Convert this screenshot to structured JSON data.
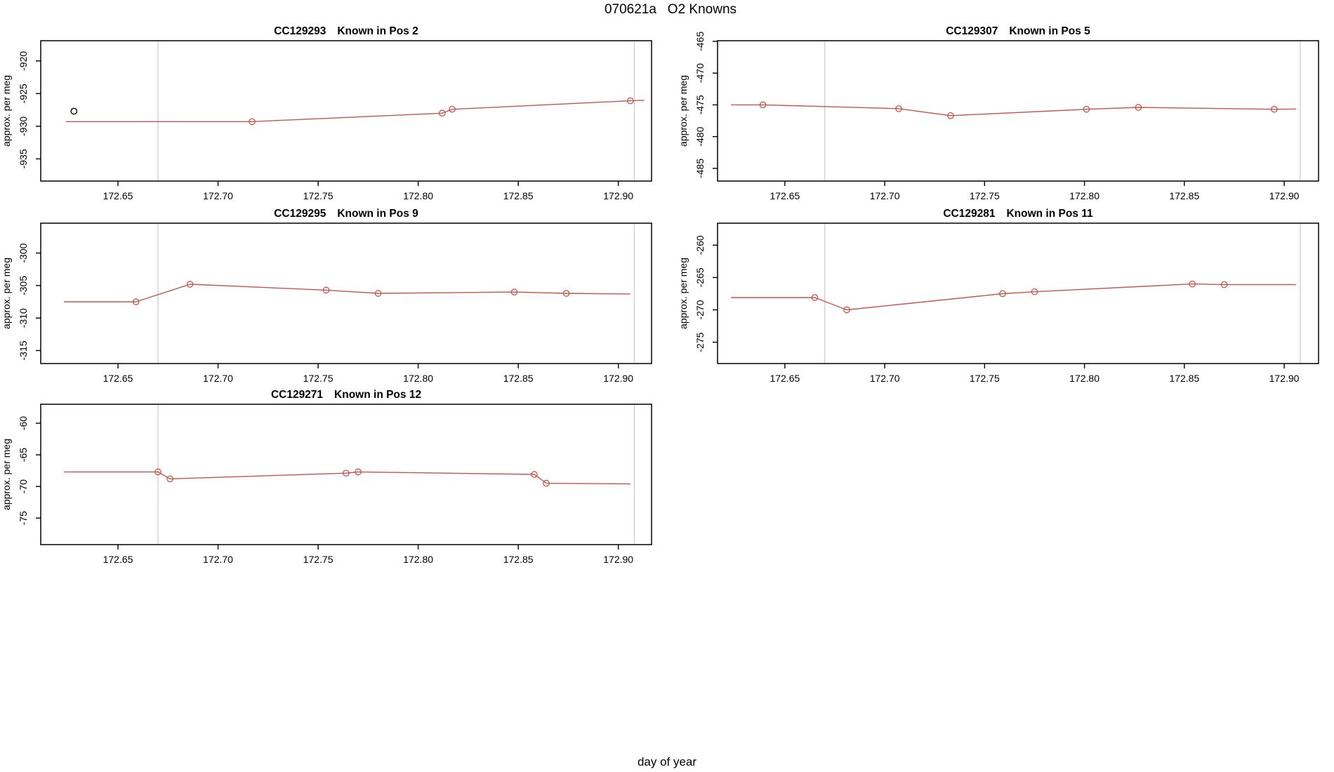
{
  "page_title": "070621a   O2 Knowns",
  "xlabel": "day of year",
  "colors": {
    "series": "#c3564f",
    "marker": "#c3564f",
    "extra_marker": "#000000",
    "event_line": "#cdcdcd",
    "axis_box": "#000000"
  },
  "chart_data": [
    {
      "type": "line",
      "sample_id": "CC129293",
      "position_label": "Known in Pos 2",
      "title": "CC129293   Known in Pos 2",
      "ylabel": "approx. per meg",
      "grid": {
        "row": 0,
        "col": 0
      },
      "xlim": [
        172.6114,
        172.9166
      ],
      "ylim": [
        -938.4,
        -916.9
      ],
      "xticks": [
        172.65,
        172.7,
        172.75,
        172.8,
        172.85,
        172.9
      ],
      "xtick_labels": [
        "172.65",
        "172.70",
        "172.75",
        "172.80",
        "172.85",
        "172.90"
      ],
      "yticks": [
        -920,
        -925,
        -930,
        -935
      ],
      "ytick_labels": [
        "-920",
        "-925",
        "-930",
        "-935"
      ],
      "vlines": [
        172.67,
        172.908
      ],
      "line": [
        [
          172.624,
          -929.3
        ],
        [
          172.717,
          -929.3
        ],
        [
          172.812,
          -928.0
        ],
        [
          172.817,
          -927.4
        ],
        [
          172.906,
          -926.1
        ],
        [
          172.913,
          -926.05
        ]
      ],
      "markers": [
        [
          172.717,
          -929.3
        ],
        [
          172.812,
          -928.0
        ],
        [
          172.817,
          -927.4
        ],
        [
          172.906,
          -926.1
        ]
      ],
      "extra_markers": [
        [
          172.628,
          -927.7
        ]
      ]
    },
    {
      "type": "line",
      "sample_id": "CC129307",
      "position_label": "Known in Pos 5",
      "title": "CC129307   Known in Pos 5",
      "ylabel": "approx. per meg",
      "grid": {
        "row": 0,
        "col": 1
      },
      "xlim": [
        172.6163,
        172.9172
      ],
      "ylim": [
        -487.0,
        -464.9
      ],
      "xticks": [
        172.65,
        172.7,
        172.75,
        172.8,
        172.85,
        172.9
      ],
      "xtick_labels": [
        "172.65",
        "172.70",
        "172.75",
        "172.80",
        "172.85",
        "172.90"
      ],
      "yticks": [
        -465,
        -470,
        -475,
        -480,
        -485
      ],
      "ytick_labels": [
        "-465",
        "-470",
        "-475",
        "-480",
        "-485"
      ],
      "vlines": [
        172.67,
        172.908
      ],
      "line": [
        [
          172.623,
          -475.0
        ],
        [
          172.639,
          -475.0
        ],
        [
          172.707,
          -475.6
        ],
        [
          172.733,
          -476.7
        ],
        [
          172.801,
          -475.7
        ],
        [
          172.827,
          -475.4
        ],
        [
          172.895,
          -475.7
        ],
        [
          172.906,
          -475.65
        ]
      ],
      "markers": [
        [
          172.639,
          -475.0
        ],
        [
          172.707,
          -475.6
        ],
        [
          172.733,
          -476.7
        ],
        [
          172.801,
          -475.7
        ],
        [
          172.827,
          -475.4
        ],
        [
          172.895,
          -475.7
        ]
      ],
      "extra_markers": []
    },
    {
      "type": "line",
      "sample_id": "CC129295",
      "position_label": "Known in Pos 9",
      "title": "CC129295   Known in Pos 9",
      "ylabel": "approx. per meg",
      "grid": {
        "row": 1,
        "col": 0
      },
      "xlim": [
        172.6114,
        172.9166
      ],
      "ylim": [
        -317.0,
        -295.4
      ],
      "xticks": [
        172.65,
        172.7,
        172.75,
        172.8,
        172.85,
        172.9
      ],
      "xtick_labels": [
        "172.65",
        "172.70",
        "172.75",
        "172.80",
        "172.85",
        "172.90"
      ],
      "yticks": [
        -300,
        -305,
        -310,
        -315
      ],
      "ytick_labels": [
        "-300",
        "-305",
        "-310",
        "-315"
      ],
      "vlines": [
        172.67,
        172.908
      ],
      "line": [
        [
          172.623,
          -307.5
        ],
        [
          172.659,
          -307.5
        ],
        [
          172.686,
          -304.8
        ],
        [
          172.754,
          -305.7
        ],
        [
          172.78,
          -306.2
        ],
        [
          172.848,
          -306.0
        ],
        [
          172.874,
          -306.2
        ],
        [
          172.906,
          -306.3
        ]
      ],
      "markers": [
        [
          172.659,
          -307.5
        ],
        [
          172.686,
          -304.8
        ],
        [
          172.754,
          -305.7
        ],
        [
          172.78,
          -306.2
        ],
        [
          172.848,
          -306.0
        ],
        [
          172.874,
          -306.2
        ]
      ],
      "extra_markers": []
    },
    {
      "type": "line",
      "sample_id": "CC129281",
      "position_label": "Known in Pos 11",
      "title": "CC129281   Known in Pos 11",
      "ylabel": "approx. per meg",
      "grid": {
        "row": 1,
        "col": 1
      },
      "xlim": [
        172.6163,
        172.9172
      ],
      "ylim": [
        -278.3,
        -256.6
      ],
      "xticks": [
        172.65,
        172.7,
        172.75,
        172.8,
        172.85,
        172.9
      ],
      "xtick_labels": [
        "172.65",
        "172.70",
        "172.75",
        "172.80",
        "172.85",
        "172.90"
      ],
      "yticks": [
        -260,
        -265,
        -270,
        -275
      ],
      "ytick_labels": [
        "-260",
        "-265",
        "-270",
        "-275"
      ],
      "vlines": [
        172.67,
        172.908
      ],
      "line": [
        [
          172.623,
          -268.1
        ],
        [
          172.665,
          -268.1
        ],
        [
          172.681,
          -270.0
        ],
        [
          172.759,
          -267.5
        ],
        [
          172.775,
          -267.2
        ],
        [
          172.854,
          -266.0
        ],
        [
          172.87,
          -266.1
        ],
        [
          172.906,
          -266.1
        ]
      ],
      "markers": [
        [
          172.665,
          -268.1
        ],
        [
          172.681,
          -270.0
        ],
        [
          172.759,
          -267.5
        ],
        [
          172.775,
          -267.2
        ],
        [
          172.854,
          -266.0
        ],
        [
          172.87,
          -266.1
        ]
      ],
      "extra_markers": []
    },
    {
      "type": "line",
      "sample_id": "CC129271",
      "position_label": "Known in Pos 12",
      "title": "CC129271   Known in Pos 12",
      "ylabel": "approx. per meg",
      "grid": {
        "row": 2,
        "col": 0
      },
      "xlim": [
        172.6114,
        172.9166
      ],
      "ylim": [
        -79.2,
        -57.0
      ],
      "xticks": [
        172.65,
        172.7,
        172.75,
        172.8,
        172.85,
        172.9
      ],
      "xtick_labels": [
        "172.65",
        "172.70",
        "172.75",
        "172.80",
        "172.85",
        "172.90"
      ],
      "yticks": [
        -60,
        -65,
        -70,
        -75
      ],
      "ytick_labels": [
        "-60",
        "-65",
        "-70",
        "-75"
      ],
      "vlines": [
        172.67,
        172.908
      ],
      "line": [
        [
          172.623,
          -67.7
        ],
        [
          172.67,
          -67.7
        ],
        [
          172.676,
          -68.8
        ],
        [
          172.764,
          -67.9
        ],
        [
          172.77,
          -67.7
        ],
        [
          172.858,
          -68.1
        ],
        [
          172.864,
          -69.5
        ],
        [
          172.906,
          -69.6
        ]
      ],
      "markers": [
        [
          172.67,
          -67.7
        ],
        [
          172.676,
          -68.8
        ],
        [
          172.764,
          -67.9
        ],
        [
          172.77,
          -67.7
        ],
        [
          172.858,
          -68.1
        ],
        [
          172.864,
          -69.5
        ]
      ],
      "extra_markers": []
    }
  ]
}
